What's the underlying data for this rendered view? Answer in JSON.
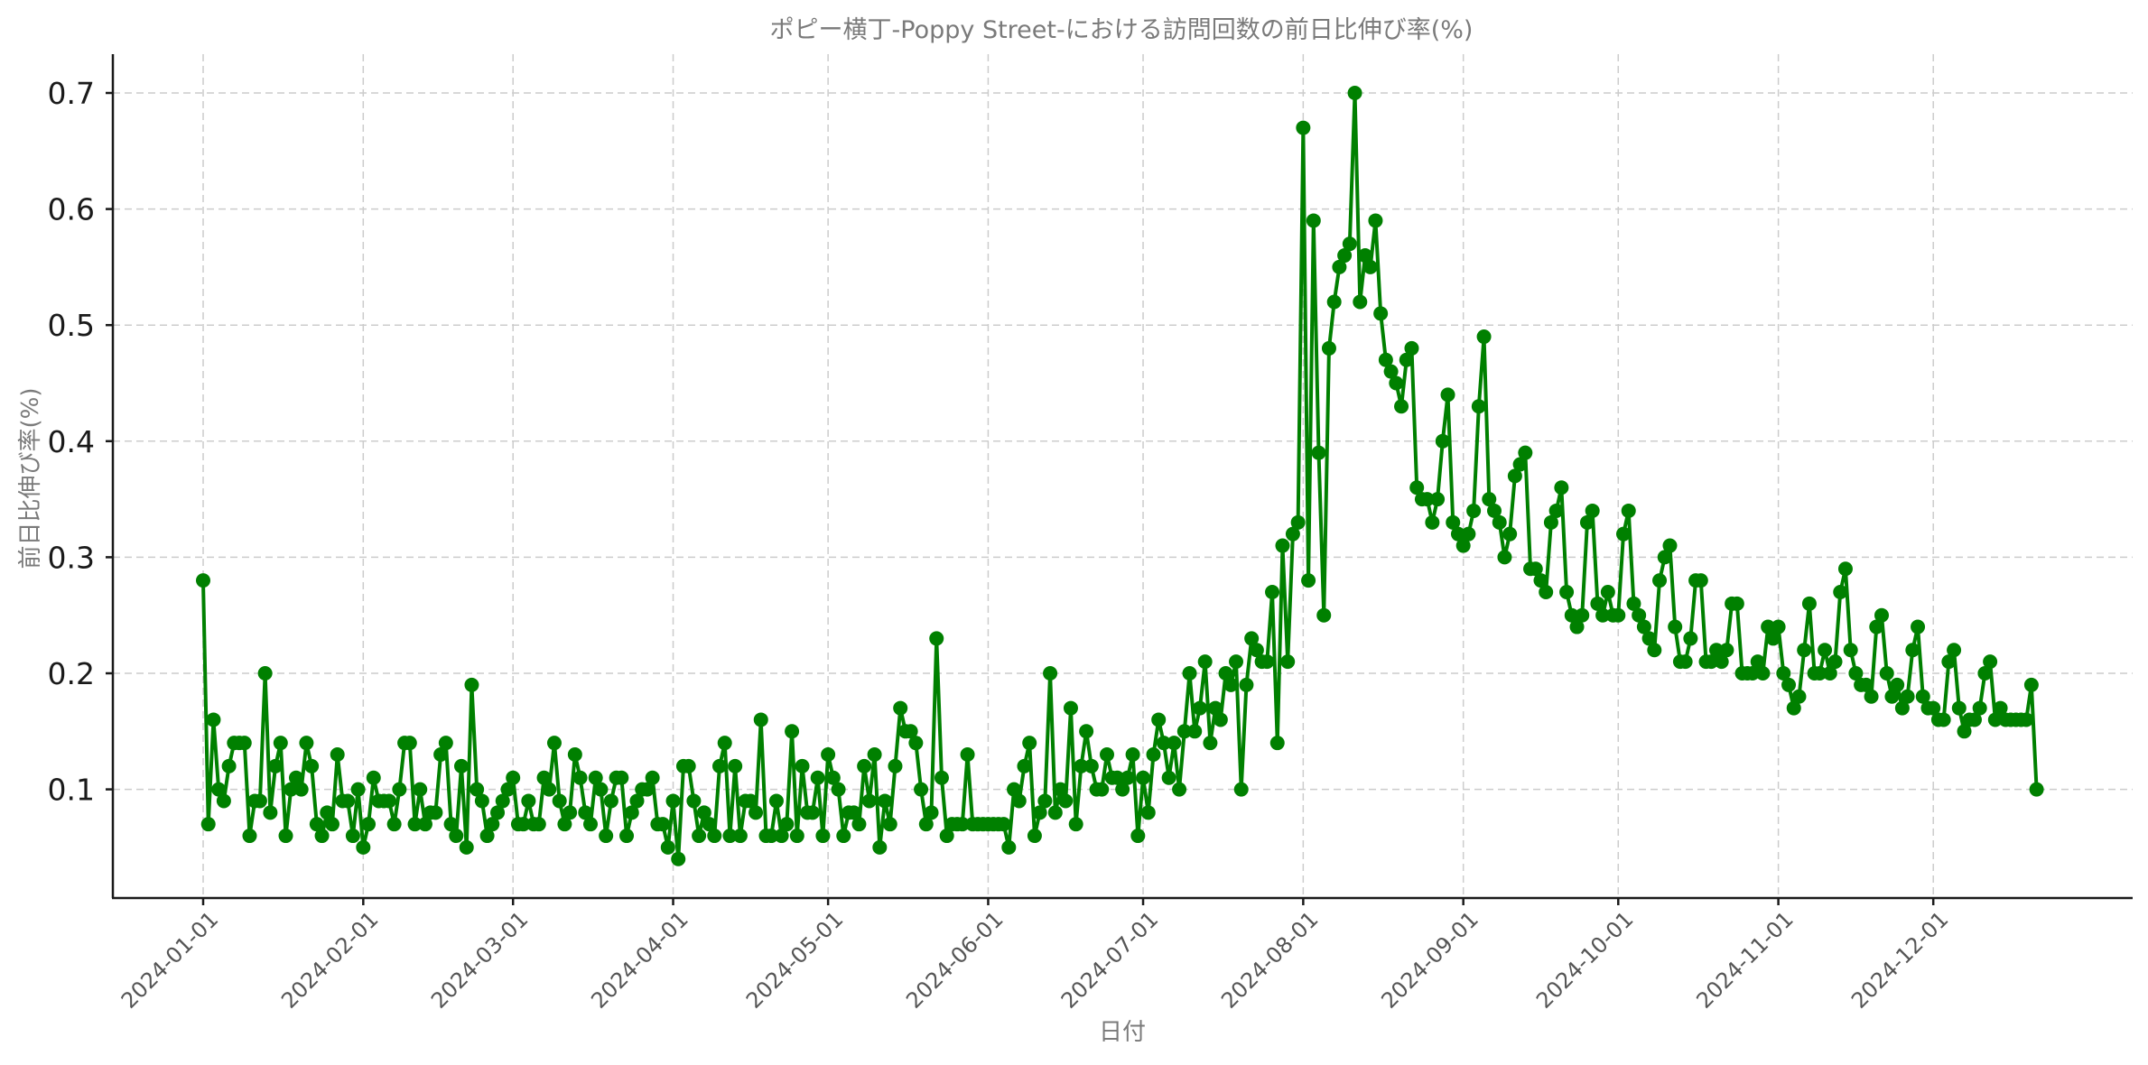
{
  "chart_data": {
    "type": "line",
    "title": "ポピー横丁-Poppy Street-における訪問回数の前日比伸び率(%)",
    "xlabel": "日付",
    "ylabel": "前日比伸び率(%)",
    "x_start": "2024-01-01",
    "x_end": "2024-12-21",
    "xtick_labels": [
      "2024-01-01",
      "2024-02-01",
      "2024-03-01",
      "2024-04-01",
      "2024-05-01",
      "2024-06-01",
      "2024-07-01",
      "2024-08-01",
      "2024-09-01",
      "2024-10-01",
      "2024-11-01",
      "2024-12-01"
    ],
    "ytick_labels": [
      "0.1",
      "0.2",
      "0.3",
      "0.4",
      "0.5",
      "0.6",
      "0.7"
    ],
    "ylim": [
      0.007,
      0.735
    ],
    "grid": true,
    "legend": null,
    "series": [
      {
        "name": "前日比伸び率",
        "color": "#008000",
        "marker": "circle",
        "values": [
          0.28,
          0.07,
          0.16,
          0.1,
          0.09,
          0.12,
          0.14,
          0.14,
          0.14,
          0.06,
          0.09,
          0.09,
          0.2,
          0.08,
          0.12,
          0.14,
          0.06,
          0.1,
          0.11,
          0.1,
          0.14,
          0.12,
          0.07,
          0.06,
          0.08,
          0.07,
          0.13,
          0.09,
          0.09,
          0.06,
          0.1,
          0.05,
          0.07,
          0.11,
          0.09,
          0.09,
          0.09,
          0.07,
          0.1,
          0.14,
          0.14,
          0.07,
          0.1,
          0.07,
          0.08,
          0.08,
          0.13,
          0.14,
          0.07,
          0.06,
          0.12,
          0.05,
          0.19,
          0.1,
          0.09,
          0.06,
          0.07,
          0.08,
          0.09,
          0.1,
          0.11,
          0.07,
          0.07,
          0.09,
          0.07,
          0.07,
          0.11,
          0.1,
          0.14,
          0.09,
          0.07,
          0.08,
          0.13,
          0.11,
          0.08,
          0.07,
          0.11,
          0.1,
          0.06,
          0.09,
          0.11,
          0.11,
          0.06,
          0.08,
          0.09,
          0.1,
          0.1,
          0.11,
          0.07,
          0.07,
          0.05,
          0.09,
          0.04,
          0.12,
          0.12,
          0.09,
          0.06,
          0.08,
          0.07,
          0.06,
          0.12,
          0.14,
          0.06,
          0.12,
          0.06,
          0.09,
          0.09,
          0.08,
          0.16,
          0.06,
          0.06,
          0.09,
          0.06,
          0.07,
          0.15,
          0.06,
          0.12,
          0.08,
          0.08,
          0.11,
          0.06,
          0.13,
          0.11,
          0.1,
          0.06,
          0.08,
          0.08,
          0.07,
          0.12,
          0.09,
          0.13,
          0.05,
          0.09,
          0.07,
          0.12,
          0.17,
          0.15,
          0.15,
          0.14,
          0.1,
          0.07,
          0.08,
          0.23,
          0.11,
          0.06,
          0.07,
          0.07,
          0.07,
          0.13,
          0.07,
          0.07,
          0.07,
          0.07,
          0.07,
          0.07,
          0.07,
          0.05,
          0.1,
          0.09,
          0.12,
          0.14,
          0.06,
          0.08,
          0.09,
          0.2,
          0.08,
          0.1,
          0.09,
          0.17,
          0.07,
          0.12,
          0.15,
          0.12,
          0.1,
          0.1,
          0.13,
          0.11,
          0.11,
          0.1,
          0.11,
          0.13,
          0.06,
          0.11,
          0.08,
          0.13,
          0.16,
          0.14,
          0.11,
          0.14,
          0.1,
          0.15,
          0.2,
          0.15,
          0.17,
          0.21,
          0.14,
          0.17,
          0.16,
          0.2,
          0.19,
          0.21,
          0.1,
          0.19,
          0.23,
          0.22,
          0.21,
          0.21,
          0.27,
          0.14,
          0.31,
          0.21,
          0.32,
          0.33,
          0.67,
          0.28,
          0.59,
          0.39,
          0.25,
          0.48,
          0.52,
          0.55,
          0.56,
          0.57,
          0.7,
          0.52,
          0.56,
          0.55,
          0.59,
          0.51,
          0.47,
          0.46,
          0.45,
          0.43,
          0.47,
          0.48,
          0.36,
          0.35,
          0.35,
          0.33,
          0.35,
          0.4,
          0.44,
          0.33,
          0.32,
          0.31,
          0.32,
          0.34,
          0.43,
          0.49,
          0.35,
          0.34,
          0.33,
          0.3,
          0.32,
          0.37,
          0.38,
          0.39,
          0.29,
          0.29,
          0.28,
          0.27,
          0.33,
          0.34,
          0.36,
          0.27,
          0.25,
          0.24,
          0.25,
          0.33,
          0.34,
          0.26,
          0.25,
          0.27,
          0.25,
          0.25,
          0.32,
          0.34,
          0.26,
          0.25,
          0.24,
          0.23,
          0.22,
          0.28,
          0.3,
          0.31,
          0.24,
          0.21,
          0.21,
          0.23,
          0.28,
          0.28,
          0.21,
          0.21,
          0.22,
          0.21,
          0.22,
          0.26,
          0.26,
          0.2,
          0.2,
          0.2,
          0.21,
          0.2,
          0.24,
          0.23,
          0.24,
          0.2,
          0.19,
          0.17,
          0.18,
          0.22,
          0.26,
          0.2,
          0.2,
          0.22,
          0.2,
          0.21,
          0.27,
          0.29,
          0.22,
          0.2,
          0.19,
          0.19,
          0.18,
          0.24,
          0.25,
          0.2,
          0.18,
          0.19,
          0.17,
          0.18,
          0.22,
          0.24,
          0.18,
          0.17,
          0.17,
          0.16,
          0.16,
          0.21,
          0.22,
          0.17,
          0.15,
          0.16,
          0.16,
          0.17,
          0.2,
          0.21,
          0.16,
          0.17,
          0.16,
          0.16,
          0.16,
          0.16,
          0.16,
          0.19,
          0.1
        ]
      }
    ]
  },
  "layout": {
    "line_color": "#008000",
    "grid_color": "#cccccc",
    "axis_color": "#1a1a1a"
  }
}
